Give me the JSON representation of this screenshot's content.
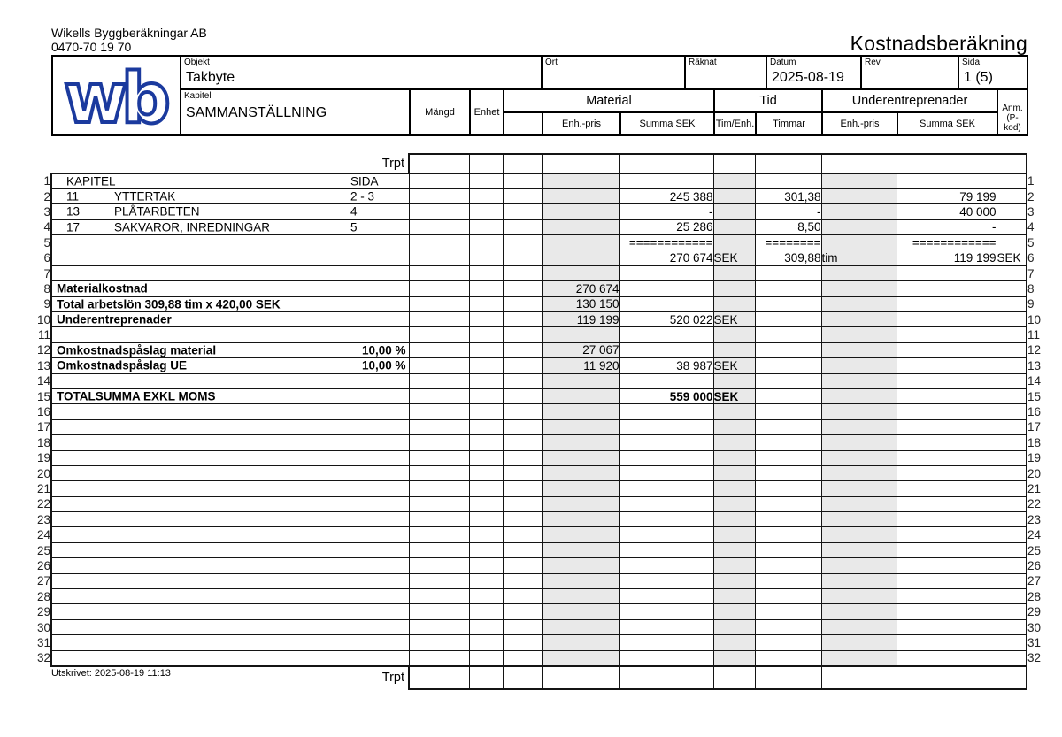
{
  "company": {
    "name": "Wikells Byggberäkningar AB",
    "phone": "0470-70 19 70"
  },
  "title": "Kostnadsberäkning",
  "logo_text": "wb",
  "form": {
    "objekt_label": "Objekt",
    "objekt": "Takbyte",
    "ort_label": "Ort",
    "ort": "",
    "raknat_label": "Räknat",
    "raknat": "",
    "datum_label": "Datum",
    "datum": "2025-08-19",
    "rev_label": "Rev",
    "rev": "",
    "sida_label": "Sida",
    "sida": "1 (5)",
    "kapitel_label": "Kapitel",
    "kapitel": "SAMMANSTÄLLNING"
  },
  "columns": {
    "mangd": "Mängd",
    "enhet": "Enhet",
    "material": "Material",
    "tid": "Tid",
    "underentreprenader": "Underentreprenader",
    "mat_enh_pris": "Enh.-pris",
    "mat_summa": "Summa SEK",
    "tim_enh": "Tim/Enh.",
    "timmar": "Timmar",
    "ue_enh_pris": "Enh.-pris",
    "ue_summa": "Summa SEK",
    "anm_line1": "Anm.",
    "anm_line2": "(P-kod)"
  },
  "trpt_label": "Trpt",
  "footer": {
    "printed": "Utskrivet: 2025-08-19 11:13"
  },
  "colors": {
    "logo_blue": "#1b3a9e",
    "column_shade": "#e9e9e9",
    "line": "#141414"
  },
  "table": {
    "row_count": 32,
    "rows": [
      {
        "n": 1,
        "d1": "KAPITEL",
        "sida": "SIDA"
      },
      {
        "n": 2,
        "d1": "11",
        "d2": "YTTERTAK",
        "sida": "2 - 3",
        "ms": "245 388",
        "tm": "301,38",
        "us": "79 199"
      },
      {
        "n": 3,
        "d1": "13",
        "d2": "PLÅTARBETEN",
        "sida": "4",
        "ms": "-",
        "tm": "-",
        "us": "40 000"
      },
      {
        "n": 4,
        "d1": "17",
        "d2": "SAKVAROR, INREDNINGAR",
        "sida": "5",
        "ms": "25 286",
        "tm": "8,50",
        "us": "-"
      },
      {
        "n": 5,
        "ms": "============",
        "tm": "========",
        "us": "============"
      },
      {
        "n": 6,
        "ms": "270 674",
        "te": "SEK",
        "tm": "309,88",
        "up": "tim",
        "us": "119 199",
        "an": "SEK"
      },
      {
        "n": 8,
        "d1": "Materialkostnad",
        "bold": true,
        "mp": "270 674"
      },
      {
        "n": 9,
        "d1": "Total arbetslön 309,88 tim x 420,00 SEK",
        "bold": true,
        "mp": "130 150"
      },
      {
        "n": 10,
        "d1": "Underentreprenader",
        "bold": true,
        "mp": "119 199",
        "ms": "520 022",
        "te": "SEK"
      },
      {
        "n": 12,
        "d1": "Omkostnadspåslag material",
        "bold": true,
        "pct": "10,00 %",
        "mp": "27 067"
      },
      {
        "n": 13,
        "d1": "Omkostnadspåslag UE",
        "bold": true,
        "pct": "10,00 %",
        "mp": "11 920",
        "ms": "38 987",
        "te": "SEK"
      },
      {
        "n": 15,
        "d1": "TOTALSUMMA EXKL MOMS",
        "bold": true,
        "vbold": true,
        "ms": "559 000",
        "te": "SEK"
      }
    ]
  }
}
